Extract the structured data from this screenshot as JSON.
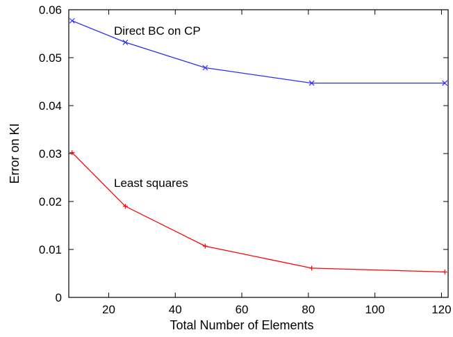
{
  "chart_data": {
    "type": "line",
    "xlabel": "Total Number of Elements",
    "ylabel": "Error on KI",
    "xlim": [
      8,
      122
    ],
    "ylim": [
      0,
      0.06
    ],
    "x_ticks": [
      20,
      40,
      60,
      80,
      100,
      120
    ],
    "y_ticks": [
      0,
      0.01,
      0.02,
      0.03,
      0.04,
      0.05,
      0.06
    ],
    "x_tick_labels": [
      "20",
      "40",
      "60",
      "80",
      "100",
      "120"
    ],
    "y_tick_labels": [
      "0",
      "0.01",
      "0.02",
      "0.03",
      "0.04",
      "0.05",
      "0.06"
    ],
    "grid": false,
    "series": [
      {
        "name": "Direct BC on CP",
        "color": "#2b2bff",
        "marker": "x",
        "x": [
          9,
          25,
          49,
          81,
          121
        ],
        "y": [
          0.0577,
          0.0532,
          0.0479,
          0.0447,
          0.0447
        ]
      },
      {
        "name": "Least squares",
        "color": "#ff0000",
        "marker": "+",
        "x": [
          9,
          25,
          49,
          81,
          121
        ],
        "y": [
          0.0302,
          0.019,
          0.0107,
          0.0061,
          0.0053
        ]
      }
    ]
  }
}
